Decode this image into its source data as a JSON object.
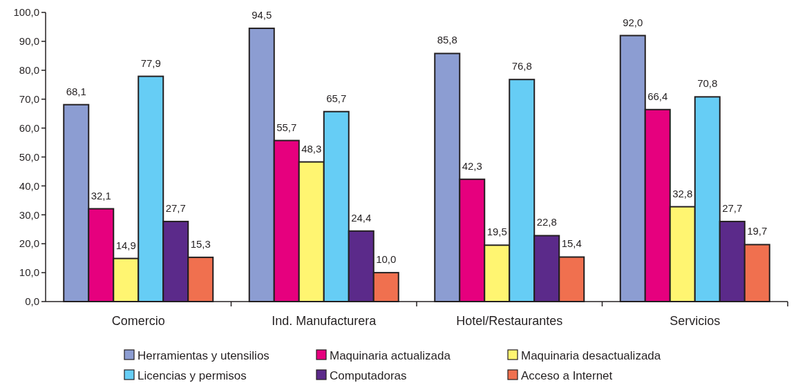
{
  "chart_data": {
    "type": "bar",
    "categories": [
      "Comercio",
      "Ind. Manufacturera",
      "Hotel/Restaurantes",
      "Servicios"
    ],
    "ylim": [
      0,
      100
    ],
    "yticks": [
      {
        "value": 0,
        "label": "0,0"
      },
      {
        "value": 10,
        "label": "10,0"
      },
      {
        "value": 20,
        "label": "20,0"
      },
      {
        "value": 30,
        "label": "30,0"
      },
      {
        "value": 40,
        "label": "40,0"
      },
      {
        "value": 50,
        "label": "50,0"
      },
      {
        "value": 60,
        "label": "60,0"
      },
      {
        "value": 70,
        "label": "70,0"
      },
      {
        "value": 80,
        "label": "80,0"
      },
      {
        "value": 90,
        "label": "90,0"
      },
      {
        "value": 100,
        "label": "100,0"
      }
    ],
    "grid": false,
    "legend": "bottom",
    "series": [
      {
        "name": "Herramientas y utensilios",
        "color": "#8c9dd2",
        "values": [
          68.1,
          94.5,
          85.8,
          92.0
        ],
        "value_labels": [
          "68,1",
          "94,5",
          "85,8",
          "92,0"
        ]
      },
      {
        "name": "Maquinaria actualizada",
        "color": "#e6007e",
        "values": [
          32.1,
          55.7,
          42.3,
          66.4
        ],
        "value_labels": [
          "32,1",
          "55,7",
          "42,3",
          "66,4"
        ]
      },
      {
        "name": "Maquinaria desactualizada",
        "color": "#fff571",
        "values": [
          14.9,
          48.3,
          19.5,
          32.8
        ],
        "value_labels": [
          "14,9",
          "48,3",
          "19,5",
          "32,8"
        ]
      },
      {
        "name": "Licencias y permisos",
        "color": "#66cdf5",
        "values": [
          77.9,
          65.7,
          76.8,
          70.8
        ],
        "value_labels": [
          "77,9",
          "65,7",
          "76,8",
          "70,8"
        ]
      },
      {
        "name": "Computadoras",
        "color": "#5b2a8a",
        "values": [
          27.7,
          24.4,
          22.8,
          27.7
        ],
        "value_labels": [
          "27,7",
          "24,4",
          "22,8",
          "27,7"
        ]
      },
      {
        "name": "Acceso a Internet",
        "color": "#f0704f",
        "values": [
          15.3,
          10.0,
          15.4,
          19.7
        ],
        "value_labels": [
          "15,3",
          "10,0",
          "15,4",
          "19,7"
        ]
      }
    ]
  }
}
